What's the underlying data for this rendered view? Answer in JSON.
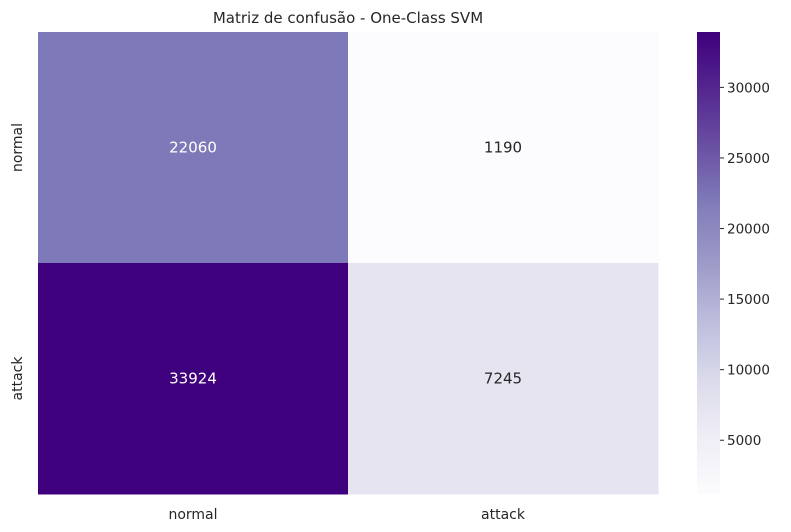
{
  "chart_data": {
    "type": "heatmap",
    "title": "Matriz de confusão - One-Class SVM",
    "xlabel": "",
    "ylabel": "",
    "x_categories": [
      "normal",
      "attack"
    ],
    "y_categories": [
      "normal",
      "attack"
    ],
    "values": [
      [
        22060,
        1190
      ],
      [
        33924,
        7245
      ]
    ],
    "colorbar": {
      "ticks": [
        5000,
        10000,
        15000,
        20000,
        25000,
        30000
      ],
      "range": [
        1190,
        33924
      ]
    },
    "colormap": "Purples",
    "colors": {
      "low": "#fcfbfd",
      "high": "#3f007d"
    }
  }
}
